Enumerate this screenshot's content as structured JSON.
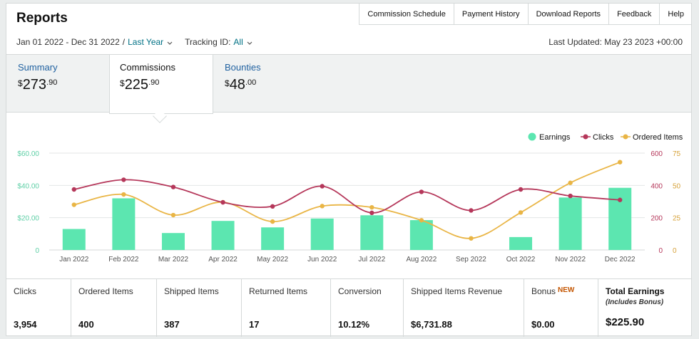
{
  "page": {
    "title": "Reports"
  },
  "topnav": [
    "Commission Schedule",
    "Payment History",
    "Download Reports",
    "Feedback",
    "Help"
  ],
  "filters": {
    "date_range": "Jan 01 2022 - Dec 31 2022",
    "separator": "/",
    "period": "Last Year",
    "tracking_label": "Tracking ID:",
    "tracking_value": "All",
    "last_updated": "Last Updated: May 23 2023 +00:00"
  },
  "tabs": [
    {
      "label": "Summary",
      "currency": "$",
      "amount": "273",
      "cents": ".90"
    },
    {
      "label": "Commissions",
      "currency": "$",
      "amount": "225",
      "cents": ".90"
    },
    {
      "label": "Bounties",
      "currency": "$",
      "amount": "48",
      "cents": ".00"
    }
  ],
  "icons": {
    "dropdown": "chevron-down-icon",
    "selected_tab": "tab-pointer-icon"
  },
  "colors": {
    "earnings": "#5ce6b0",
    "clicks": "#b5375a",
    "ordered_items": "#e9b545",
    "link": "#2162a1",
    "new_badge": "#c45500"
  },
  "chart_data": {
    "type": "bar",
    "categories": [
      "Jan 2022",
      "Feb 2022",
      "Mar 2022",
      "Apr 2022",
      "May 2022",
      "Jun 2022",
      "Jul 2022",
      "Aug 2022",
      "Sep 2022",
      "Oct 2022",
      "Nov 2022",
      "Dec 2022"
    ],
    "series": [
      {
        "name": "Earnings",
        "type": "bar",
        "axis": "left",
        "values": [
          13,
          32,
          10.5,
          18,
          14,
          19.5,
          21.5,
          18.5,
          0,
          8,
          32.5,
          38.5
        ]
      },
      {
        "name": "Clicks",
        "type": "line",
        "axis": "right-outer",
        "values": [
          375,
          435,
          390,
          295,
          270,
          395,
          230,
          360,
          245,
          375,
          335,
          310
        ]
      },
      {
        "name": "Ordered Items",
        "type": "line",
        "axis": "right-inner",
        "values": [
          35,
          43,
          27,
          37,
          22,
          34,
          33,
          23,
          9,
          29,
          52,
          68
        ]
      }
    ],
    "axes": {
      "left": {
        "ylim": [
          0,
          60
        ],
        "ticks": [
          "0",
          "$20.00",
          "$40.00",
          "$60.00"
        ]
      },
      "right_outer": {
        "ylim": [
          0,
          600
        ],
        "ticks": [
          "0",
          "200",
          "400",
          "600"
        ]
      },
      "right_inner": {
        "ylim": [
          0,
          75
        ],
        "ticks": [
          "0",
          "25",
          "50",
          "75"
        ]
      }
    },
    "legend": "top-right",
    "grid": true
  },
  "metrics": [
    {
      "label": "Clicks",
      "value": "3,954"
    },
    {
      "label": "Ordered Items",
      "value": "400"
    },
    {
      "label": "Shipped Items",
      "value": "387"
    },
    {
      "label": "Returned Items",
      "value": "17"
    },
    {
      "label": "Conversion",
      "value": "10.12%"
    },
    {
      "label": "Shipped Items Revenue",
      "value": "$6,731.88"
    },
    {
      "label": "Bonus",
      "badge": "NEW",
      "value": "$0.00"
    },
    {
      "label": "Total Earnings",
      "note": "(Includes Bonus)",
      "value": "$225.90"
    }
  ]
}
